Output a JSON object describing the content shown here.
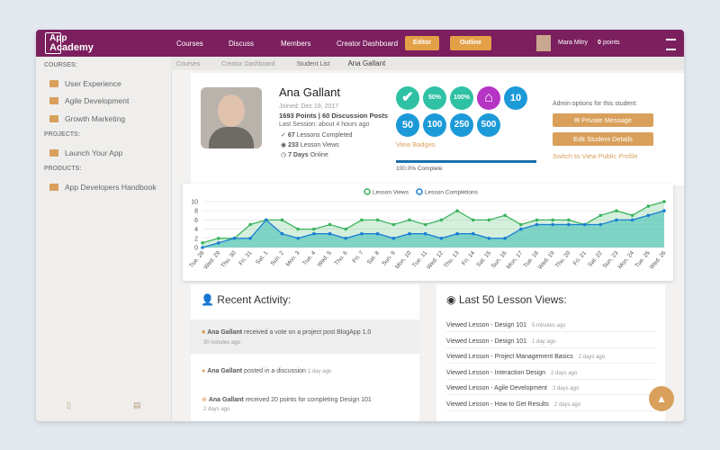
{
  "header": {
    "logo": [
      "App",
      "Academy"
    ],
    "nav": [
      "Courses",
      "Discuss",
      "Members",
      "Creator Dashboard"
    ],
    "buttons": [
      "Editor",
      "Outline"
    ],
    "user": "Mara Mitry",
    "points": "0",
    "points_label": "points"
  },
  "sidebar": {
    "sections": [
      {
        "title": "COURSES:",
        "items": [
          "User Experience",
          "Agile Development",
          "Growth Marketing"
        ]
      },
      {
        "title": "PROJECTS:",
        "items": [
          "Launch Your App"
        ]
      },
      {
        "title": "PRODUCTS:",
        "items": [
          "App Developers Handbook"
        ]
      }
    ]
  },
  "breadcrumb": [
    "Courses",
    "Creator Dashboard",
    "Student List",
    "Ana Gallant"
  ],
  "profile": {
    "name": "Ana Gallant",
    "joined": "Joined: Dec 19, 2017",
    "points": "1693 Points | 60 Discussion Posts",
    "last_session": "Last Session: about 4 hours ago",
    "stats": [
      {
        "value": "67",
        "label": "Lessons Completed"
      },
      {
        "value": "233",
        "label": "Lesson Views"
      },
      {
        "value": "7 Days",
        "label": "Online"
      }
    ],
    "badges": [
      "50%",
      "100%",
      "10",
      "50",
      "100",
      "250",
      "500"
    ],
    "view_badges": "View Badges",
    "progress": "100.0% Complete"
  },
  "admin": {
    "title": "Admin options for this student:",
    "buttons": [
      "Private Message",
      "Edit Student Details"
    ],
    "link": "Switch to View Public Profile"
  },
  "chart_data": {
    "type": "line",
    "categories": [
      "Tue. 28",
      "Wed. 29",
      "Thu. 30",
      "Fri. 31",
      "Sat. 1",
      "Sun. 2",
      "Mon. 3",
      "Tue. 4",
      "Wed. 5",
      "Thu. 6",
      "Fri. 7",
      "Sat. 8",
      "Sun. 9",
      "Mon. 10",
      "Tue. 11",
      "Wed. 12",
      "Thu. 13",
      "Fri. 14",
      "Sat. 15",
      "Sun. 16",
      "Mon. 17",
      "Tue. 18",
      "Wed. 19",
      "Thu. 20",
      "Fri. 21",
      "Sat. 22",
      "Sun. 23",
      "Mon. 24",
      "Tue. 25",
      "Wed. 26"
    ],
    "series": [
      {
        "name": "Lesson Views",
        "color": "#3cb55e",
        "values": [
          1,
          2,
          2,
          5,
          6,
          6,
          4,
          4,
          5,
          4,
          6,
          6,
          5,
          6,
          5,
          6,
          8,
          6,
          6,
          7,
          5,
          6,
          6,
          6,
          5,
          7,
          8,
          7,
          9,
          10
        ]
      },
      {
        "name": "Lesson Completions",
        "color": "#1b7fd4",
        "values": [
          0,
          1,
          2,
          2,
          6,
          3,
          2,
          3,
          3,
          2,
          3,
          3,
          2,
          3,
          3,
          2,
          3,
          3,
          2,
          2,
          4,
          5,
          5,
          5,
          5,
          5,
          6,
          6,
          7,
          8
        ]
      }
    ],
    "ylim": [
      0,
      10
    ],
    "yticks": [
      0,
      2,
      4,
      6,
      8,
      10
    ],
    "grid": true
  },
  "activity": {
    "title": "Recent Activity:",
    "items": [
      {
        "who": "Ana Gallant",
        "what": "received a vote on a project post BlogApp 1.0",
        "when": "30 minutes ago"
      },
      {
        "who": "Ana Gallant",
        "what": "posted in a discussion",
        "when": "1 day ago"
      },
      {
        "who": "Ana Gallant",
        "what": "received 20 points for completing Design 101",
        "when": "2 days ago"
      }
    ]
  },
  "lessons": {
    "title": "Last 50 Lesson Views:",
    "items": [
      {
        "what": "Viewed Lesson - Design 101",
        "when": "5 minutes ago"
      },
      {
        "what": "Viewed Lesson - Design 101",
        "when": "1 day ago"
      },
      {
        "what": "Viewed Lesson - Project Management Basics",
        "when": "2 days ago"
      },
      {
        "what": "Viewed Lesson - Interaction Design",
        "when": "2 days ago"
      },
      {
        "what": "Viewed Lesson - Agile Development",
        "when": "2 days ago"
      },
      {
        "what": "Viewed Lesson - How to Get Results",
        "when": "2 days ago"
      }
    ]
  }
}
